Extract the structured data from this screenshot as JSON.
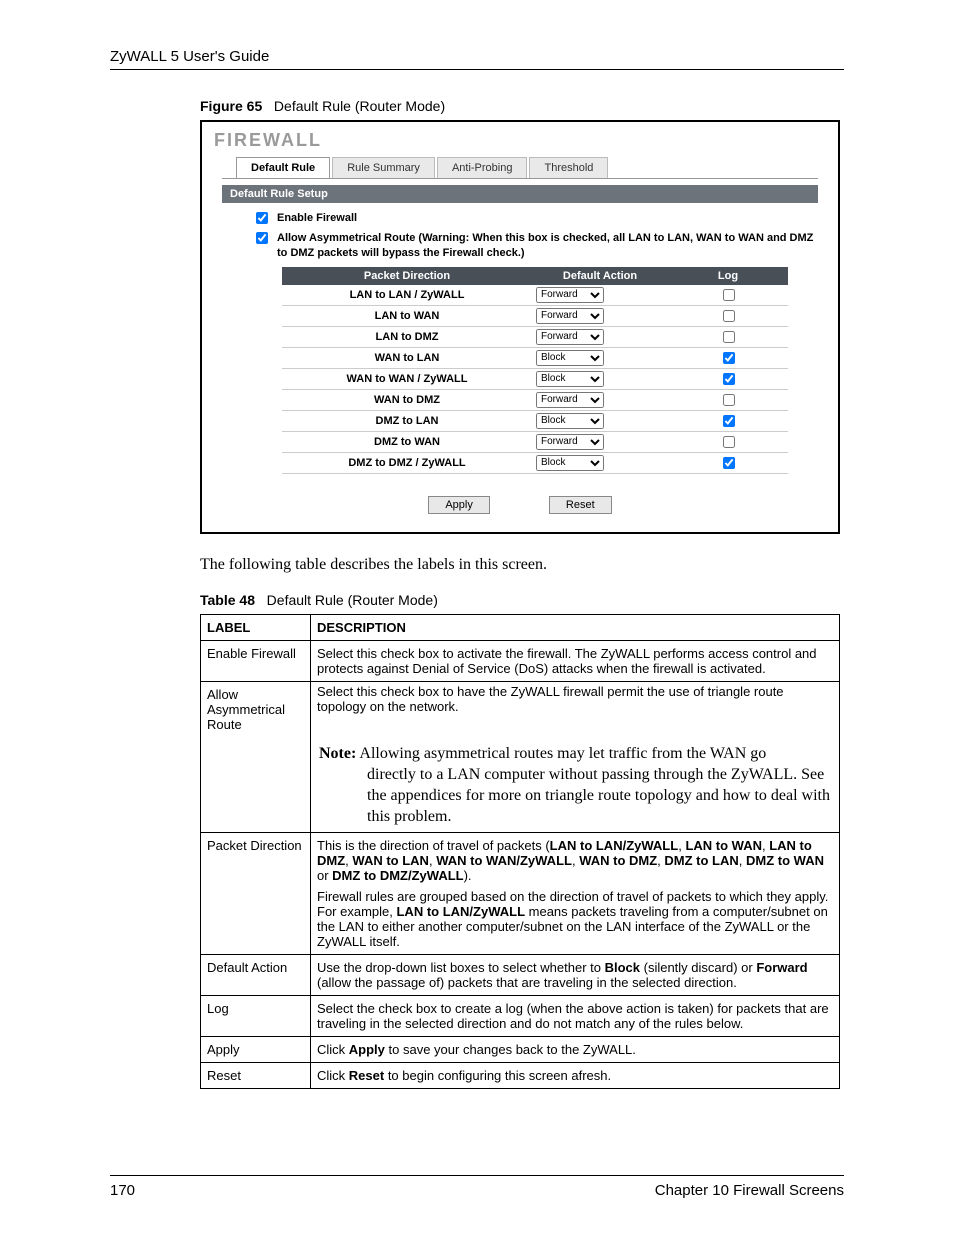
{
  "header": {
    "running": "ZyWALL 5 User's Guide"
  },
  "figure": {
    "label": "Figure 65",
    "title": "Default Rule (Router Mode)"
  },
  "firewall": {
    "heading": "FIREWALL",
    "tabs": [
      "Default Rule",
      "Rule Summary",
      "Anti-Probing",
      "Threshold"
    ],
    "section": "Default Rule Setup",
    "enable_label": "Enable Firewall",
    "enable_checked": true,
    "asym_label": "Allow Asymmetrical Route (Warning: When this box is checked, all LAN to LAN, WAN to WAN and DMZ to DMZ packets will bypass the Firewall check.)",
    "asym_checked": true,
    "columns": {
      "pd": "Packet Direction",
      "da": "Default Action",
      "log": "Log"
    },
    "action_options": [
      "Forward",
      "Block"
    ],
    "rows": [
      {
        "pd": "LAN to LAN / ZyWALL",
        "action": "Forward",
        "log": false
      },
      {
        "pd": "LAN to WAN",
        "action": "Forward",
        "log": false
      },
      {
        "pd": "LAN to DMZ",
        "action": "Forward",
        "log": false
      },
      {
        "pd": "WAN to LAN",
        "action": "Block",
        "log": true
      },
      {
        "pd": "WAN to WAN / ZyWALL",
        "action": "Block",
        "log": true
      },
      {
        "pd": "WAN to DMZ",
        "action": "Forward",
        "log": false
      },
      {
        "pd": "DMZ to LAN",
        "action": "Block",
        "log": true
      },
      {
        "pd": "DMZ to WAN",
        "action": "Forward",
        "log": false
      },
      {
        "pd": "DMZ to DMZ / ZyWALL",
        "action": "Block",
        "log": true
      }
    ],
    "buttons": {
      "apply": "Apply",
      "reset": "Reset"
    }
  },
  "narrative": "The following table describes the labels in this screen.",
  "tablecap": {
    "label": "Table 48",
    "title": "Default Rule (Router Mode)"
  },
  "desc": {
    "head": {
      "label": "LABEL",
      "description": "DESCRIPTION"
    },
    "rows": [
      {
        "label": "Enable Firewall",
        "text": "Select this check box to activate the firewall. The ZyWALL performs access control and protects against Denial of Service (DoS) attacks when the firewall is activated."
      },
      {
        "label": "Allow Asymmetrical Route",
        "text": "Select this check box to have the ZyWALL firewall permit the use of triangle route topology on the network.",
        "note_lead": "Note:",
        "note_first": " Allowing asymmetrical routes may let traffic from the WAN go",
        "note_rest": "directly to a LAN computer without passing through the ZyWALL. See the appendices for more on triangle route topology and how to deal with this problem."
      },
      {
        "label": "Packet Direction",
        "html": "This is the direction of travel of packets (<b>LAN to LAN/ZyWALL</b>, <b>LAN to WAN</b>, <b>LAN to DMZ</b>, <b>WAN to LAN</b>, <b>WAN to WAN/ZyWALL</b>, <b>WAN to DMZ</b>, <b>DMZ to LAN</b>, <b>DMZ to WAN</b> or <b>DMZ to DMZ/ZyWALL</b>).",
        "html2": "Firewall rules are grouped based on the direction of travel of packets to which they apply. For example, <b>LAN to LAN/ZyWALL</b> means packets traveling from a computer/subnet on the LAN to either another computer/subnet on the LAN interface of the ZyWALL or the ZyWALL itself."
      },
      {
        "label": "Default Action",
        "html": "Use the drop-down list boxes to select whether to <b>Block</b> (silently discard) or <b>Forward</b> (allow the passage of) packets that are traveling in the selected direction."
      },
      {
        "label": "Log",
        "text": "Select the check box to create a log (when the above action is taken) for packets that are traveling in the selected direction and do not match any of the rules below."
      },
      {
        "label": "Apply",
        "html": "Click <b>Apply</b> to save your changes back to the ZyWALL."
      },
      {
        "label": "Reset",
        "html": "Click <b>Reset</b> to begin configuring this screen afresh."
      }
    ]
  },
  "footer": {
    "page": "170",
    "chapter": "Chapter 10 Firewall Screens"
  }
}
